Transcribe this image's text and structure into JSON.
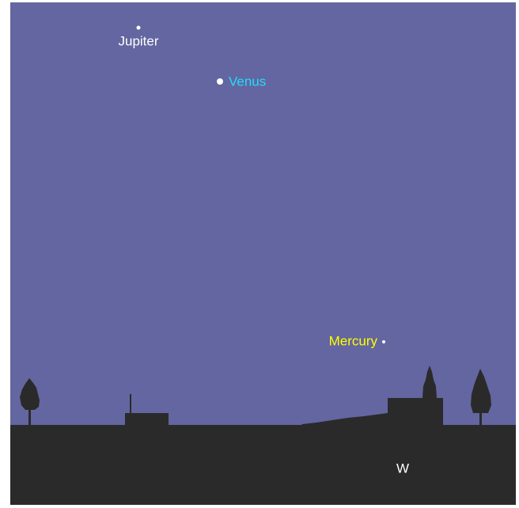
{
  "planets": [
    {
      "label": "Jupiter"
    },
    {
      "label": "Venus"
    },
    {
      "label": "Mercury"
    }
  ],
  "direction": "W"
}
